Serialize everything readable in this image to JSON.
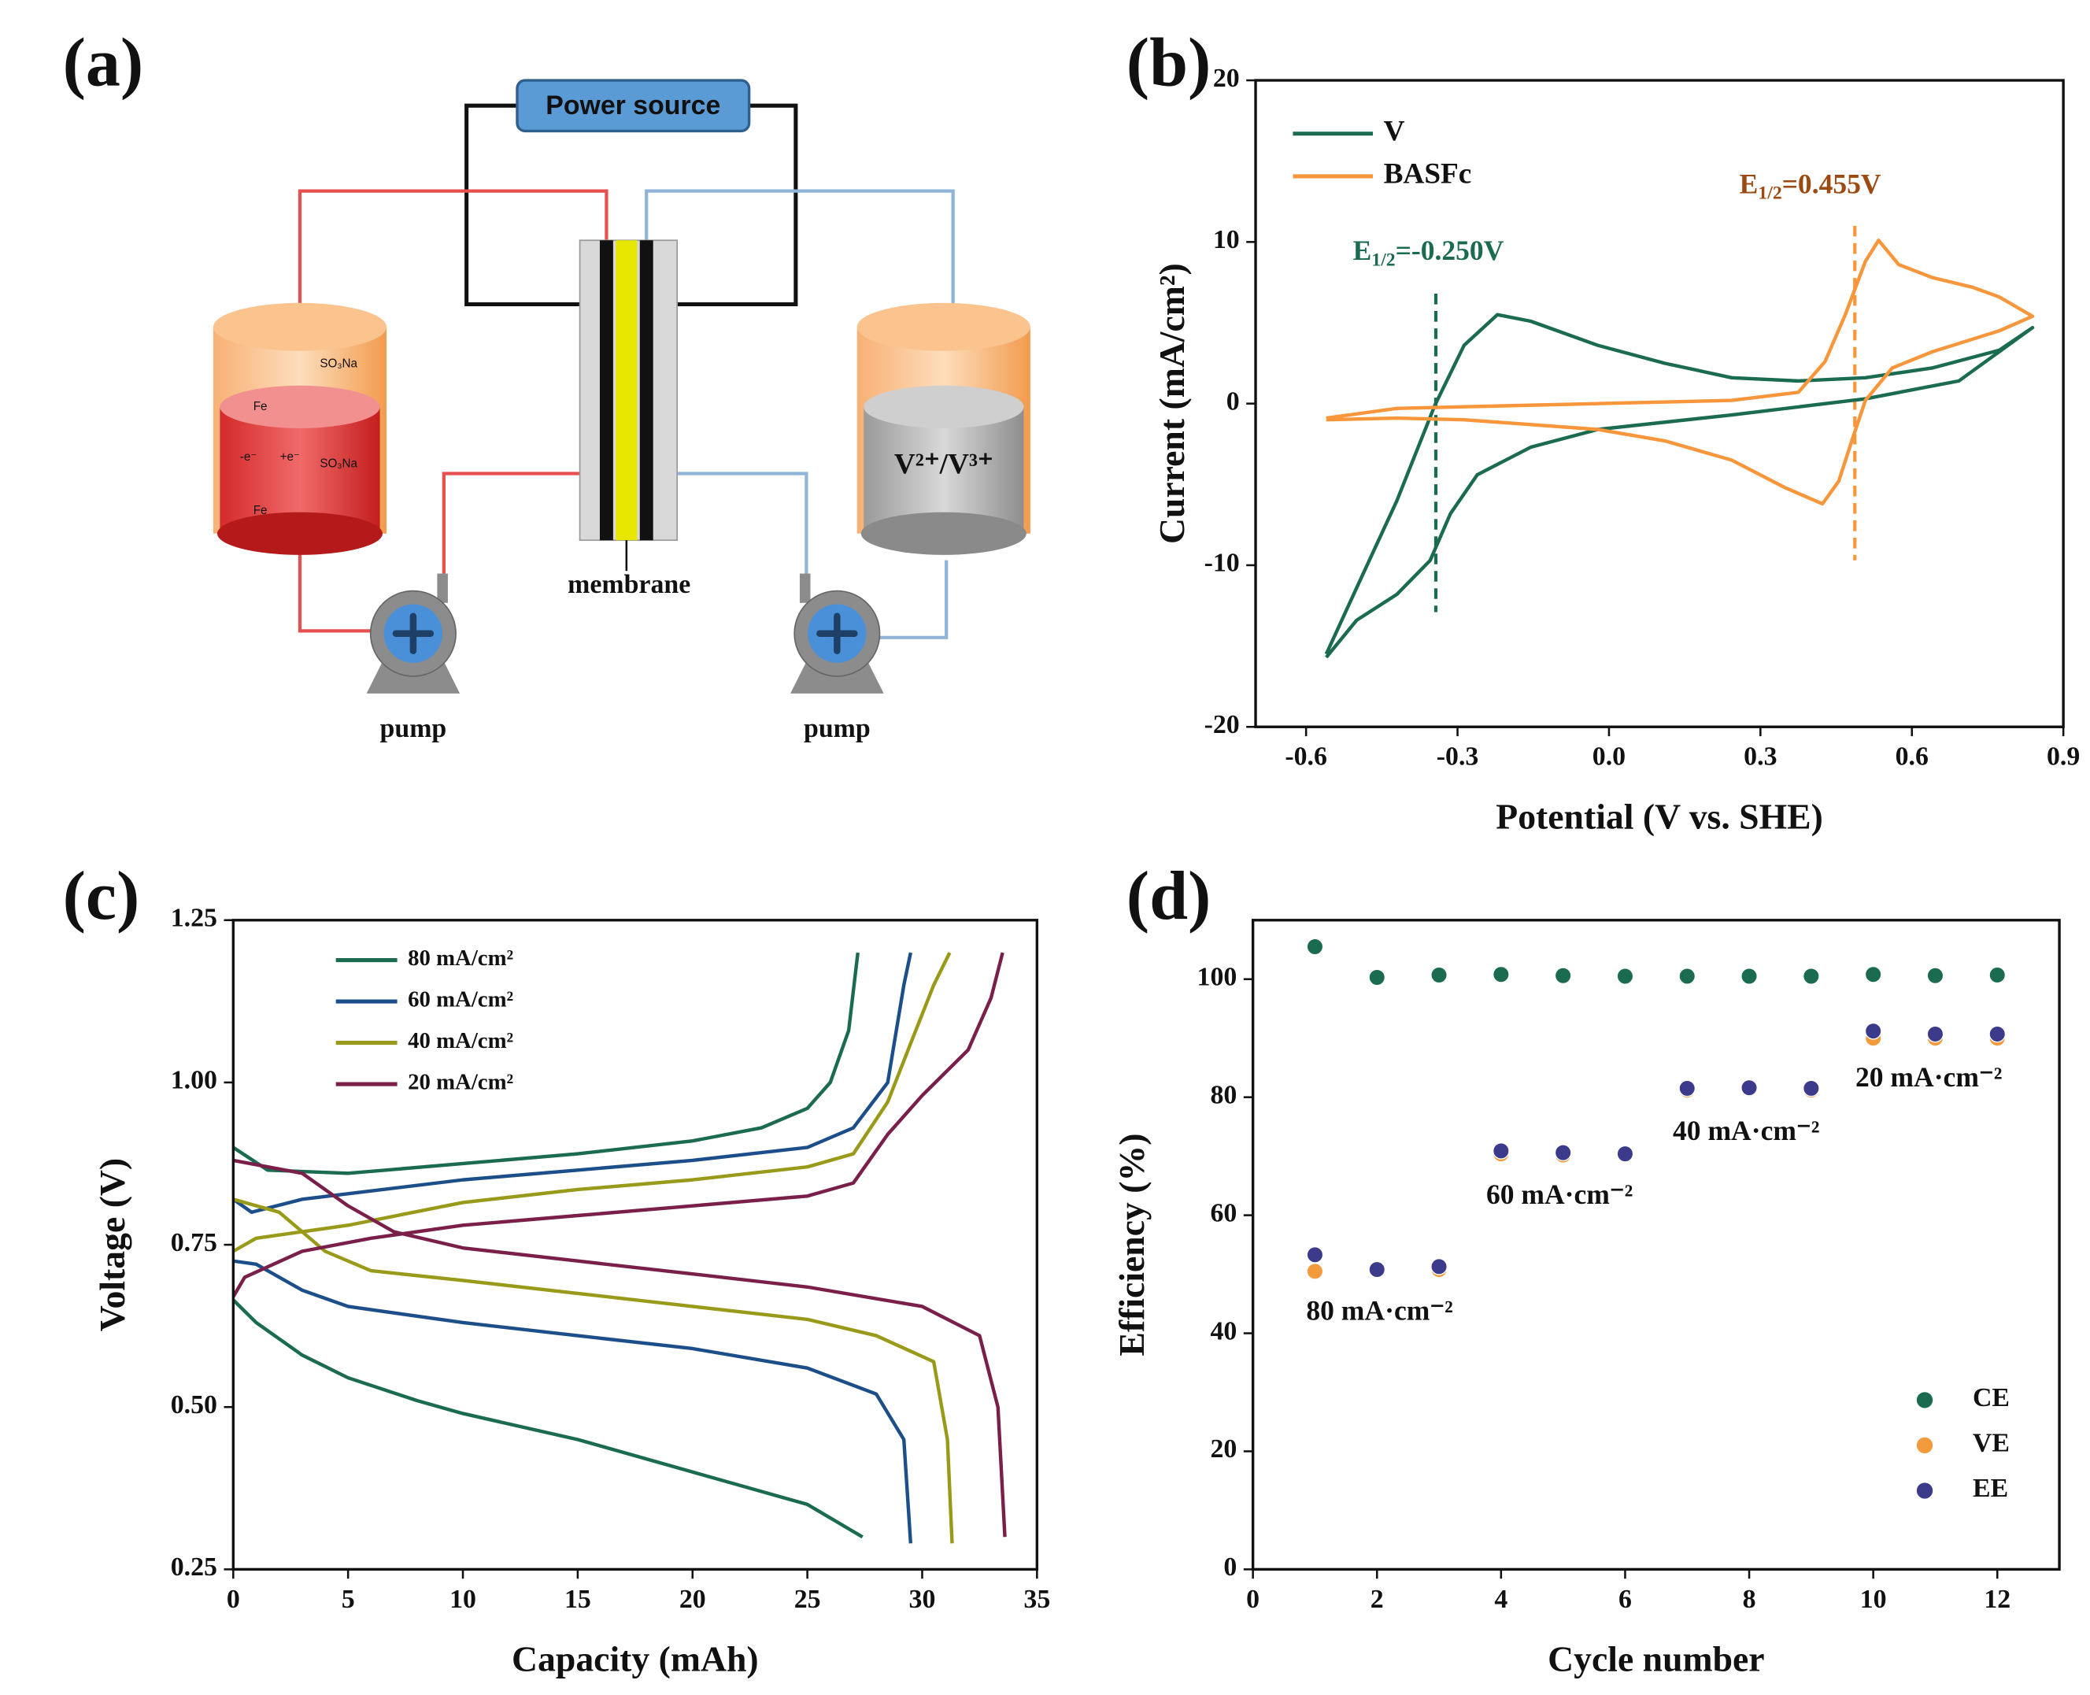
{
  "diagram": {
    "panel_label": "(a)",
    "power": "Power source",
    "membrane": "membrane",
    "pumps": [
      "pump",
      "pump"
    ],
    "right_tank": "V²⁺/V³⁺",
    "left_tank": {
      "groups": [
        "SO₃Na",
        "SO₃Na"
      ],
      "metals": [
        "Fe",
        "Fe"
      ],
      "electron": [
        "-e⁻",
        "+e⁻"
      ]
    }
  },
  "chart_data": [
    {
      "panel_label": "(b)",
      "type": "line",
      "xlabel": "Potential (V vs. SHE)",
      "ylabel": "Current (mA/cm²)",
      "xlim": [
        -0.7,
        0.9
      ],
      "ylim": [
        -20,
        20
      ],
      "xticks": [
        -0.6,
        -0.3,
        {
          "value": 0,
          "label": "0.0"
        },
        0.3,
        0.6,
        0.9
      ],
      "yticks": [
        -20,
        -10,
        0,
        10,
        20
      ],
      "legend": "upper left",
      "series": [
        {
          "name": "V",
          "color": "#1b6b50",
          "x": [
            -0.56,
            -0.5,
            -0.42,
            -0.345,
            -0.287,
            -0.221,
            -0.155,
            -0.022,
            0.11,
            0.243,
            0.375,
            0.508,
            0.64,
            0.773,
            0.839,
            0.693,
            0.508,
            0.243,
            -0.022,
            -0.155,
            -0.261,
            -0.314,
            -0.354,
            -0.42,
            -0.5,
            -0.56
          ],
          "y": [
            -15.5,
            -11.4,
            -6.0,
            -0.1,
            3.6,
            5.5,
            5.1,
            3.6,
            2.5,
            1.6,
            1.4,
            1.6,
            2.2,
            3.3,
            4.7,
            1.4,
            0.3,
            -0.7,
            -1.6,
            -2.7,
            -4.4,
            -6.8,
            -9.7,
            -11.8,
            -13.4,
            -15.7
          ]
        },
        {
          "name": "BASFc",
          "color": "#f7963b",
          "x": [
            -0.56,
            -0.42,
            -0.287,
            -0.022,
            0.243,
            0.375,
            0.428,
            0.468,
            0.508,
            0.534,
            0.574,
            0.64,
            0.72,
            0.773,
            0.839,
            0.773,
            0.64,
            0.561,
            0.508,
            0.481,
            0.455,
            0.423,
            0.349,
            0.243,
            0.11,
            -0.022,
            -0.287,
            -0.42,
            -0.56
          ],
          "y": [
            -0.9,
            -0.3,
            -0.2,
            0,
            0.2,
            0.7,
            2.6,
            5.5,
            8.8,
            10.1,
            8.6,
            7.8,
            7.2,
            6.6,
            5.4,
            4.5,
            3.2,
            2.2,
            0.2,
            -2.3,
            -4.8,
            -6.2,
            -5.2,
            -3.5,
            -2.3,
            -1.6,
            -1.0,
            -0.9,
            -1.0
          ]
        }
      ],
      "guides": [
        {
          "x": -0.343,
          "y": [
            6.8,
            -12.9
          ],
          "color": "#1b6b50"
        },
        {
          "x": 0.487,
          "y": [
            11.0,
            -9.7
          ],
          "color": "#f7963b"
        }
      ],
      "annotations": [
        {
          "text": "E",
          "sub": "1/2",
          "rest": "=-0.250V",
          "color": "#1b6b50"
        },
        {
          "text": "E",
          "sub": "1/2",
          "rest": "=0.455V",
          "color": "#9c4a12"
        }
      ]
    },
    {
      "panel_label": "(c)",
      "type": "line",
      "xlabel": "Capacity (mAh)",
      "ylabel": "Voltage (V)",
      "xlim": [
        0,
        35
      ],
      "ylim": [
        0.25,
        1.25
      ],
      "xticks": [
        0,
        5,
        10,
        15,
        20,
        25,
        30,
        35
      ],
      "yticks": [
        0.25,
        {
          "value": 0.5,
          "label": "0.50"
        },
        0.75,
        {
          "value": 1,
          "label": "1.00"
        },
        1.25
      ],
      "legend": "upper left",
      "series": [
        {
          "name": "80 mA/cm²",
          "color": "#1b6b50",
          "x": [
            0,
            1.5,
            5,
            10,
            15,
            20,
            23,
            25,
            26,
            26.8,
            27.2,
            null,
            0,
            1,
            3,
            5,
            8,
            10,
            15,
            20,
            25,
            27.4
          ],
          "y": [
            0.9,
            0.865,
            0.86,
            0.875,
            0.89,
            0.91,
            0.93,
            0.96,
            1.0,
            1.08,
            1.2,
            null,
            0.665,
            0.63,
            0.58,
            0.545,
            0.51,
            0.49,
            0.45,
            0.4,
            0.35,
            0.3
          ]
        },
        {
          "name": "60 mA/cm²",
          "color": "#1c4f8a",
          "x": [
            0,
            0.8,
            3,
            10,
            15,
            20,
            25,
            27,
            28.5,
            29.2,
            29.5,
            null,
            0,
            1,
            3,
            5,
            10,
            15,
            20,
            25,
            28,
            29.2,
            29.5
          ],
          "y": [
            0.82,
            0.8,
            0.82,
            0.85,
            0.865,
            0.88,
            0.9,
            0.93,
            1.0,
            1.15,
            1.2,
            null,
            0.725,
            0.72,
            0.68,
            0.655,
            0.63,
            0.61,
            0.59,
            0.56,
            0.52,
            0.45,
            0.29
          ]
        },
        {
          "name": "40 mA/cm²",
          "color": "#9a9a1a",
          "x": [
            0,
            1,
            5,
            10,
            15,
            20,
            25,
            27,
            28.5,
            29.5,
            30.5,
            31.2,
            null,
            0,
            2,
            4,
            6,
            10,
            15,
            20,
            25,
            28,
            30.5,
            31.1,
            31.3
          ],
          "y": [
            0.74,
            0.76,
            0.78,
            0.815,
            0.835,
            0.85,
            0.87,
            0.89,
            0.97,
            1.06,
            1.15,
            1.2,
            null,
            0.82,
            0.8,
            0.74,
            0.71,
            0.695,
            0.675,
            0.655,
            0.635,
            0.61,
            0.57,
            0.45,
            0.29
          ]
        },
        {
          "name": "20 mA/cm²",
          "color": "#7a1f4a",
          "x": [
            0,
            0.5,
            3,
            6,
            10,
            15,
            20,
            25,
            27,
            28.5,
            30,
            32,
            33,
            33.5,
            null,
            0,
            3,
            5,
            7,
            10,
            15,
            20,
            25,
            30,
            32.5,
            33.3,
            33.6
          ],
          "y": [
            0.67,
            0.7,
            0.74,
            0.76,
            0.78,
            0.795,
            0.81,
            0.825,
            0.845,
            0.92,
            0.98,
            1.05,
            1.13,
            1.2,
            null,
            0.88,
            0.86,
            0.81,
            0.77,
            0.745,
            0.725,
            0.705,
            0.685,
            0.655,
            0.61,
            0.5,
            0.3
          ]
        }
      ]
    },
    {
      "panel_label": "(d)",
      "type": "scatter",
      "xlabel": "Cycle number",
      "ylabel": "Efficiency (%)",
      "xlim": [
        0,
        13
      ],
      "ylim": [
        0,
        110
      ],
      "xticks": [
        0,
        2,
        4,
        6,
        8,
        10,
        12
      ],
      "yticks": [
        0,
        20,
        40,
        60,
        80,
        100
      ],
      "legend": "lower right",
      "x": [
        1,
        2,
        3,
        4,
        5,
        6,
        7,
        8,
        9,
        10,
        11,
        12
      ],
      "series": [
        {
          "name": "CE",
          "color": "#1b6b50",
          "values": [
            105.5,
            100.3,
            100.7,
            100.8,
            100.6,
            100.5,
            100.5,
            100.5,
            100.5,
            100.8,
            100.6,
            100.7
          ]
        },
        {
          "name": "VE",
          "color": "#f39a3c",
          "values": [
            50.5,
            50.7,
            50.8,
            70.4,
            70.2,
            70.3,
            81.2,
            81.4,
            81.2,
            90.0,
            90.0,
            90.0
          ]
        },
        {
          "name": "EE",
          "color": "#3c3a8a",
          "values": [
            53.3,
            50.8,
            51.3,
            70.9,
            70.6,
            70.4,
            81.5,
            81.6,
            81.5,
            91.2,
            90.7,
            90.7
          ]
        }
      ],
      "annotations": [
        "80 mA·cm⁻²",
        "60 mA·cm⁻²",
        "40 mA·cm⁻²",
        "20 mA·cm⁻²"
      ]
    }
  ]
}
